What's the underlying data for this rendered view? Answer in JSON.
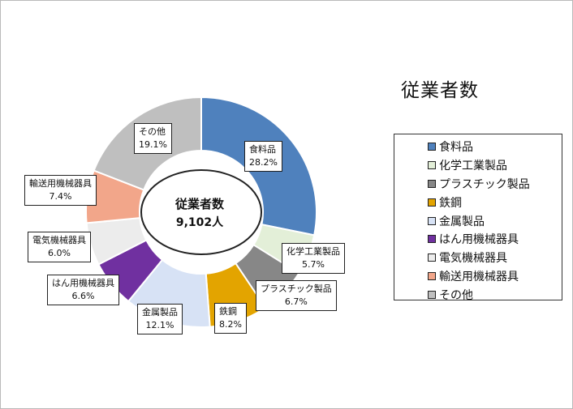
{
  "chart_data": {
    "type": "pie",
    "title": "従業者数",
    "center_label": "従業者数",
    "center_value": "9,102人",
    "series": [
      {
        "name": "食料品",
        "value": 28.2,
        "label": "28.2%",
        "color": "#4f81bd"
      },
      {
        "name": "化学工業製品",
        "value": 5.7,
        "label": "5.7%",
        "color": "#e3efd8"
      },
      {
        "name": "プラスチック製品",
        "value": 6.7,
        "label": "6.7%",
        "color": "#878787"
      },
      {
        "name": "鉄鋼",
        "value": 8.2,
        "label": "8.2%",
        "color": "#e3a400"
      },
      {
        "name": "金属製品",
        "value": 12.1,
        "label": "12.1%",
        "color": "#d7e2f5"
      },
      {
        "name": "はん用機械器具",
        "value": 6.6,
        "label": "6.6%",
        "color": "#7030a0"
      },
      {
        "name": "電気機械器具",
        "value": 6.0,
        "label": "6.0%",
        "color": "#ececec"
      },
      {
        "name": "輸送用機械器具",
        "value": 7.4,
        "label": "7.4%",
        "color": "#f2a68a"
      },
      {
        "name": "その他",
        "value": 19.1,
        "label": "19.1%",
        "color": "#bfbfbf"
      }
    ],
    "legend_placement": "right"
  }
}
